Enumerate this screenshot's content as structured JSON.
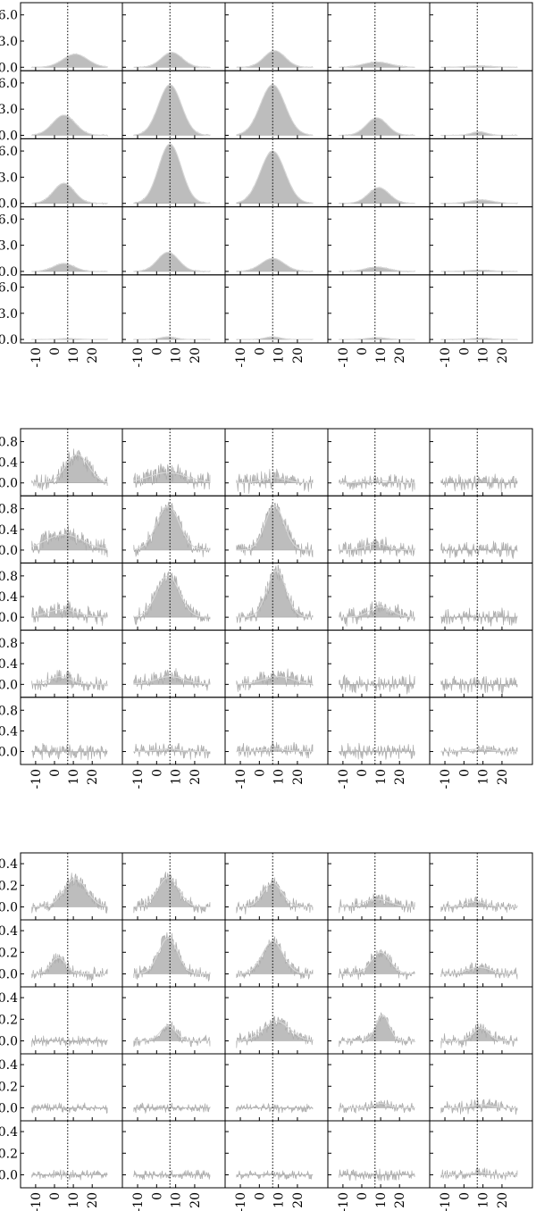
{
  "chart_data": [
    {
      "type": "area",
      "grid_shape": [
        5,
        5
      ],
      "x_ticks": [
        -10,
        0,
        10,
        20
      ],
      "xlim": [
        -18,
        36
      ],
      "marker_x": 7,
      "ylim": [
        -0.4,
        7.4
      ],
      "y_ticks": [
        0.0,
        3.0,
        6.0
      ],
      "y_tick_labels": [
        "0.0",
        "3.0",
        "6.0"
      ],
      "panels": [
        [
          {
            "peak": 1.5,
            "center": 11,
            "width": 6.5,
            "noise": 0.05
          },
          {
            "peak": 1.7,
            "center": 8,
            "width": 5.5,
            "noise": 0.05
          },
          {
            "peak": 1.9,
            "center": 8,
            "width": 5.5,
            "noise": 0.05
          },
          {
            "peak": 0.6,
            "center": 8,
            "width": 7,
            "noise": 0.05
          },
          {
            "peak": 0.15,
            "center": 8,
            "width": 7,
            "noise": 0.04
          }
        ],
        [
          {
            "peak": 2.3,
            "center": 5,
            "width": 6,
            "noise": 0.06
          },
          {
            "peak": 5.8,
            "center": 7,
            "width": 6,
            "noise": 0.06
          },
          {
            "peak": 5.8,
            "center": 7,
            "width": 6.5,
            "noise": 0.06
          },
          {
            "peak": 2.0,
            "center": 8,
            "width": 5.5,
            "noise": 0.05
          },
          {
            "peak": 0.4,
            "center": 8,
            "width": 4,
            "noise": 0.04
          }
        ],
        [
          {
            "peak": 2.3,
            "center": 5,
            "width": 5.5,
            "noise": 0.06
          },
          {
            "peak": 6.8,
            "center": 7,
            "width": 6,
            "noise": 0.06
          },
          {
            "peak": 6.0,
            "center": 7,
            "width": 6.5,
            "noise": 0.06
          },
          {
            "peak": 1.8,
            "center": 9,
            "width": 5.5,
            "noise": 0.05
          },
          {
            "peak": 0.4,
            "center": 9,
            "width": 6,
            "noise": 0.04
          }
        ],
        [
          {
            "peak": 0.9,
            "center": 5,
            "width": 5.5,
            "noise": 0.05
          },
          {
            "peak": 2.2,
            "center": 6,
            "width": 5.5,
            "noise": 0.05
          },
          {
            "peak": 1.5,
            "center": 7,
            "width": 6,
            "noise": 0.05
          },
          {
            "peak": 0.5,
            "center": 8,
            "width": 6,
            "noise": 0.05
          },
          {
            "peak": 0.15,
            "center": 8,
            "width": 6,
            "noise": 0.04
          }
        ],
        [
          {
            "peak": 0.1,
            "center": 7,
            "width": 5,
            "noise": 0.03
          },
          {
            "peak": 0.3,
            "center": 6,
            "width": 4,
            "noise": 0.03
          },
          {
            "peak": 0.3,
            "center": 7,
            "width": 4,
            "noise": 0.03
          },
          {
            "peak": 0.2,
            "center": 8,
            "width": 5,
            "noise": 0.03
          },
          {
            "peak": 0.15,
            "center": 9,
            "width": 5,
            "noise": 0.03
          }
        ]
      ]
    },
    {
      "type": "area",
      "grid_shape": [
        5,
        5
      ],
      "x_ticks": [
        -10,
        0,
        10,
        20
      ],
      "xlim": [
        -18,
        36
      ],
      "marker_x": 7,
      "ylim": [
        -0.25,
        1.05
      ],
      "y_ticks": [
        0.0,
        0.4,
        0.8
      ],
      "y_tick_labels": [
        "0.0",
        "0.4",
        "0.8"
      ],
      "panels": [
        [
          {
            "peak": 0.55,
            "center": 12,
            "width": 6,
            "noise": 0.13
          },
          {
            "peak": 0.2,
            "center": 6,
            "width": 10,
            "noise": 0.15
          },
          {
            "peak": 0.1,
            "center": 8,
            "width": 6,
            "noise": 0.15
          },
          {
            "peak": 0.05,
            "center": 8,
            "width": 6,
            "noise": 0.12
          },
          {
            "peak": 0.0,
            "center": 8,
            "width": 6,
            "noise": 0.13
          }
        ],
        [
          {
            "peak": 0.3,
            "center": 5,
            "width": 10,
            "noise": 0.14
          },
          {
            "peak": 0.85,
            "center": 6,
            "width": 6,
            "noise": 0.12
          },
          {
            "peak": 0.85,
            "center": 8,
            "width": 5,
            "noise": 0.12
          },
          {
            "peak": 0.12,
            "center": 8,
            "width": 6,
            "noise": 0.14
          },
          {
            "peak": 0.0,
            "center": 8,
            "width": 6,
            "noise": 0.13
          }
        ],
        [
          {
            "peak": 0.15,
            "center": 4,
            "width": 8,
            "noise": 0.14
          },
          {
            "peak": 0.8,
            "center": 6,
            "width": 6,
            "noise": 0.12
          },
          {
            "peak": 0.9,
            "center": 9,
            "width": 5,
            "noise": 0.12
          },
          {
            "peak": 0.2,
            "center": 10,
            "width": 6,
            "noise": 0.14
          },
          {
            "peak": 0.0,
            "center": 8,
            "width": 6,
            "noise": 0.13
          }
        ],
        [
          {
            "peak": 0.15,
            "center": 3,
            "width": 6,
            "noise": 0.12
          },
          {
            "peak": 0.15,
            "center": 7,
            "width": 8,
            "noise": 0.12
          },
          {
            "peak": 0.15,
            "center": 10,
            "width": 8,
            "noise": 0.13
          },
          {
            "peak": 0.0,
            "center": 8,
            "width": 6,
            "noise": 0.14
          },
          {
            "peak": 0.0,
            "center": 8,
            "width": 6,
            "noise": 0.13
          }
        ],
        [
          {
            "peak": 0.0,
            "center": 6,
            "width": 6,
            "noise": 0.13
          },
          {
            "peak": 0.05,
            "center": 6,
            "width": 6,
            "noise": 0.12
          },
          {
            "peak": 0.05,
            "center": 8,
            "width": 6,
            "noise": 0.12
          },
          {
            "peak": 0.0,
            "center": 8,
            "width": 6,
            "noise": 0.12
          },
          {
            "peak": 0.05,
            "center": 8,
            "width": 6,
            "noise": 0.08
          }
        ]
      ]
    },
    {
      "type": "area",
      "grid_shape": [
        5,
        5
      ],
      "x_ticks": [
        -10,
        0,
        10,
        20
      ],
      "xlim": [
        -18,
        36
      ],
      "marker_x": 7,
      "ylim": [
        -0.12,
        0.5
      ],
      "y_ticks": [
        0.0,
        0.2,
        0.4
      ],
      "y_tick_labels": [
        "0.0",
        "0.2",
        "0.4"
      ],
      "panels": [
        [
          {
            "peak": 0.26,
            "center": 11,
            "width": 6,
            "noise": 0.05
          },
          {
            "peak": 0.27,
            "center": 6,
            "width": 5.5,
            "noise": 0.05
          },
          {
            "peak": 0.22,
            "center": 7,
            "width": 5,
            "noise": 0.05
          },
          {
            "peak": 0.07,
            "center": 8,
            "width": 7,
            "noise": 0.05
          },
          {
            "peak": 0.05,
            "center": 6,
            "width": 5,
            "noise": 0.04
          }
        ],
        [
          {
            "peak": 0.15,
            "center": 2,
            "width": 4,
            "noise": 0.05
          },
          {
            "peak": 0.33,
            "center": 6,
            "width": 5,
            "noise": 0.05
          },
          {
            "peak": 0.3,
            "center": 7,
            "width": 5.5,
            "noise": 0.05
          },
          {
            "peak": 0.2,
            "center": 10,
            "width": 5,
            "noise": 0.05
          },
          {
            "peak": 0.06,
            "center": 8,
            "width": 6,
            "noise": 0.04
          }
        ],
        [
          {
            "peak": 0.0,
            "center": 6,
            "width": 6,
            "noise": 0.04
          },
          {
            "peak": 0.14,
            "center": 6,
            "width": 4,
            "noise": 0.04
          },
          {
            "peak": 0.18,
            "center": 9,
            "width": 7,
            "noise": 0.05
          },
          {
            "peak": 0.24,
            "center": 11,
            "width": 3.5,
            "noise": 0.04
          },
          {
            "peak": 0.12,
            "center": 9,
            "width": 4,
            "noise": 0.05
          }
        ],
        [
          {
            "peak": 0.0,
            "center": 6,
            "width": 6,
            "noise": 0.035
          },
          {
            "peak": 0.0,
            "center": 6,
            "width": 6,
            "noise": 0.035
          },
          {
            "peak": 0.0,
            "center": 6,
            "width": 6,
            "noise": 0.035
          },
          {
            "peak": 0.04,
            "center": 10,
            "width": 4,
            "noise": 0.035
          },
          {
            "peak": 0.03,
            "center": 9,
            "width": 5,
            "noise": 0.05
          }
        ],
        [
          {
            "peak": 0.0,
            "center": 6,
            "width": 6,
            "noise": 0.035
          },
          {
            "peak": 0.0,
            "center": 6,
            "width": 6,
            "noise": 0.035
          },
          {
            "peak": 0.0,
            "center": 6,
            "width": 6,
            "noise": 0.035
          },
          {
            "peak": 0.0,
            "center": 6,
            "width": 6,
            "noise": 0.045
          },
          {
            "peak": 0.02,
            "center": 8,
            "width": 5,
            "noise": 0.04
          }
        ]
      ]
    }
  ]
}
